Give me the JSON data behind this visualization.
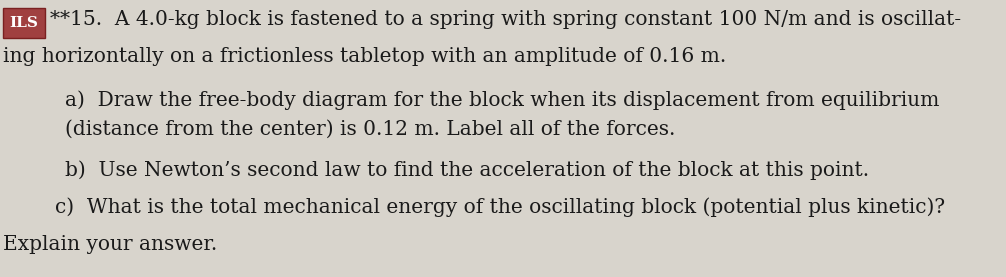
{
  "background_color": "#d8d4cc",
  "box_color": "#a04040",
  "box_text": "ILS",
  "line1_prefix": "**15.  A 4.0-kg block is fastened to a spring with spring constant 100 N/m and is oscillat-",
  "line2": "ing horizontally on a frictionless tabletop with an amplitude of 0.16 m.",
  "part_a_label": "a)",
  "part_a_text1": "  Draw the free-body diagram for the block when its displacement from equilibrium",
  "part_a_text2": "(distance from the center) is 0.12 m. Label all of the forces.",
  "part_b_label": "b)",
  "part_b_text": "  Use Newton’s second law to find the acceleration of the block at this point.",
  "part_c_label": "c)",
  "part_c_text": "  What is the total mechanical energy of the oscillating block (potential plus kinetic)?",
  "part_c_text2": "Explain your answer.",
  "font_size_main": 14.5,
  "font_size_box": 11,
  "font_family": "DejaVu Serif"
}
